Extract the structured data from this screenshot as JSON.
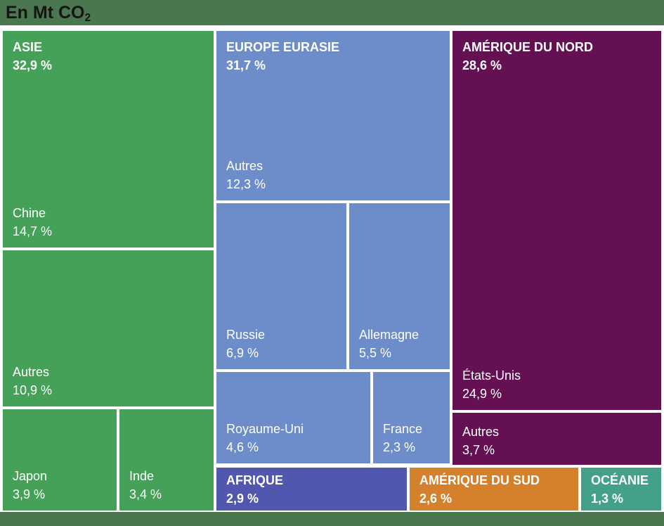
{
  "header": {
    "title_prefix": "En Mt CO",
    "title_sub": "2"
  },
  "colors": {
    "band_green": "#4a7750",
    "asie_green": "#45a158",
    "europe_blue": "#6c8dca",
    "nord_purple": "#661054",
    "afrique_indigo": "#5157ae",
    "sud_orange": "#d5802b",
    "oceanie_teal": "#42a08b",
    "label_white": "#ffffff",
    "title_black": "#151515"
  },
  "cells": {
    "chine": {
      "region": "ASIE",
      "region_pct": "32,9 %",
      "name": "Chine",
      "pct": "14,7 %"
    },
    "asie_autres": {
      "name": "Autres",
      "pct": "10,9 %"
    },
    "japon": {
      "name": "Japon",
      "pct": "3,9 %"
    },
    "inde": {
      "name": "Inde",
      "pct": "3,4 %"
    },
    "eur_autres": {
      "region": "EUROPE EURASIE",
      "region_pct": "31,7 %",
      "name": "Autres",
      "pct": "12,3 %"
    },
    "russie": {
      "name": "Russie",
      "pct": "6,9 %"
    },
    "allemagne": {
      "name": "Allemagne",
      "pct": "5,5 %"
    },
    "royaume_uni": {
      "name": "Royaume-Uni",
      "pct": "4,6 %"
    },
    "france": {
      "name": "France",
      "pct": "2,3 %"
    },
    "etats_unis": {
      "region": "AMÉRIQUE DU NORD",
      "region_pct": "28,6 %",
      "name": "États-Unis",
      "pct": "24,9 %"
    },
    "nord_autres": {
      "name": "Autres",
      "pct": "3,7 %"
    },
    "afrique": {
      "region": "AFRIQUE",
      "region_pct": "2,9 %"
    },
    "sud": {
      "region": "AMÉRIQUE DU SUD",
      "region_pct": "2,6 %"
    },
    "oceanie": {
      "region": "OCÉANIE",
      "region_pct": "1,3 %"
    }
  },
  "chart_data": {
    "type": "treemap",
    "title": "En Mt CO₂",
    "value_unit": "percent of total Mt CO₂ emissions",
    "layout": "regions tiled left-to-right by size; small regions form bottom strip",
    "regions": [
      {
        "name": "ASIE",
        "value": 32.9,
        "color": "#45a158",
        "children": [
          {
            "name": "Chine",
            "value": 14.7
          },
          {
            "name": "Autres",
            "value": 10.9
          },
          {
            "name": "Japon",
            "value": 3.9
          },
          {
            "name": "Inde",
            "value": 3.4
          }
        ]
      },
      {
        "name": "EUROPE EURASIE",
        "value": 31.7,
        "color": "#6c8dca",
        "children": [
          {
            "name": "Autres",
            "value": 12.3
          },
          {
            "name": "Russie",
            "value": 6.9
          },
          {
            "name": "Allemagne",
            "value": 5.5
          },
          {
            "name": "Royaume-Uni",
            "value": 4.6
          },
          {
            "name": "France",
            "value": 2.3
          }
        ]
      },
      {
        "name": "AMÉRIQUE DU NORD",
        "value": 28.6,
        "color": "#661054",
        "children": [
          {
            "name": "États-Unis",
            "value": 24.9
          },
          {
            "name": "Autres",
            "value": 3.7
          }
        ]
      },
      {
        "name": "AFRIQUE",
        "value": 2.9,
        "color": "#5157ae",
        "children": []
      },
      {
        "name": "AMÉRIQUE DU SUD",
        "value": 2.6,
        "color": "#d5802b",
        "children": []
      },
      {
        "name": "OCÉANIE",
        "value": 1.3,
        "color": "#42a08b",
        "children": []
      }
    ]
  }
}
